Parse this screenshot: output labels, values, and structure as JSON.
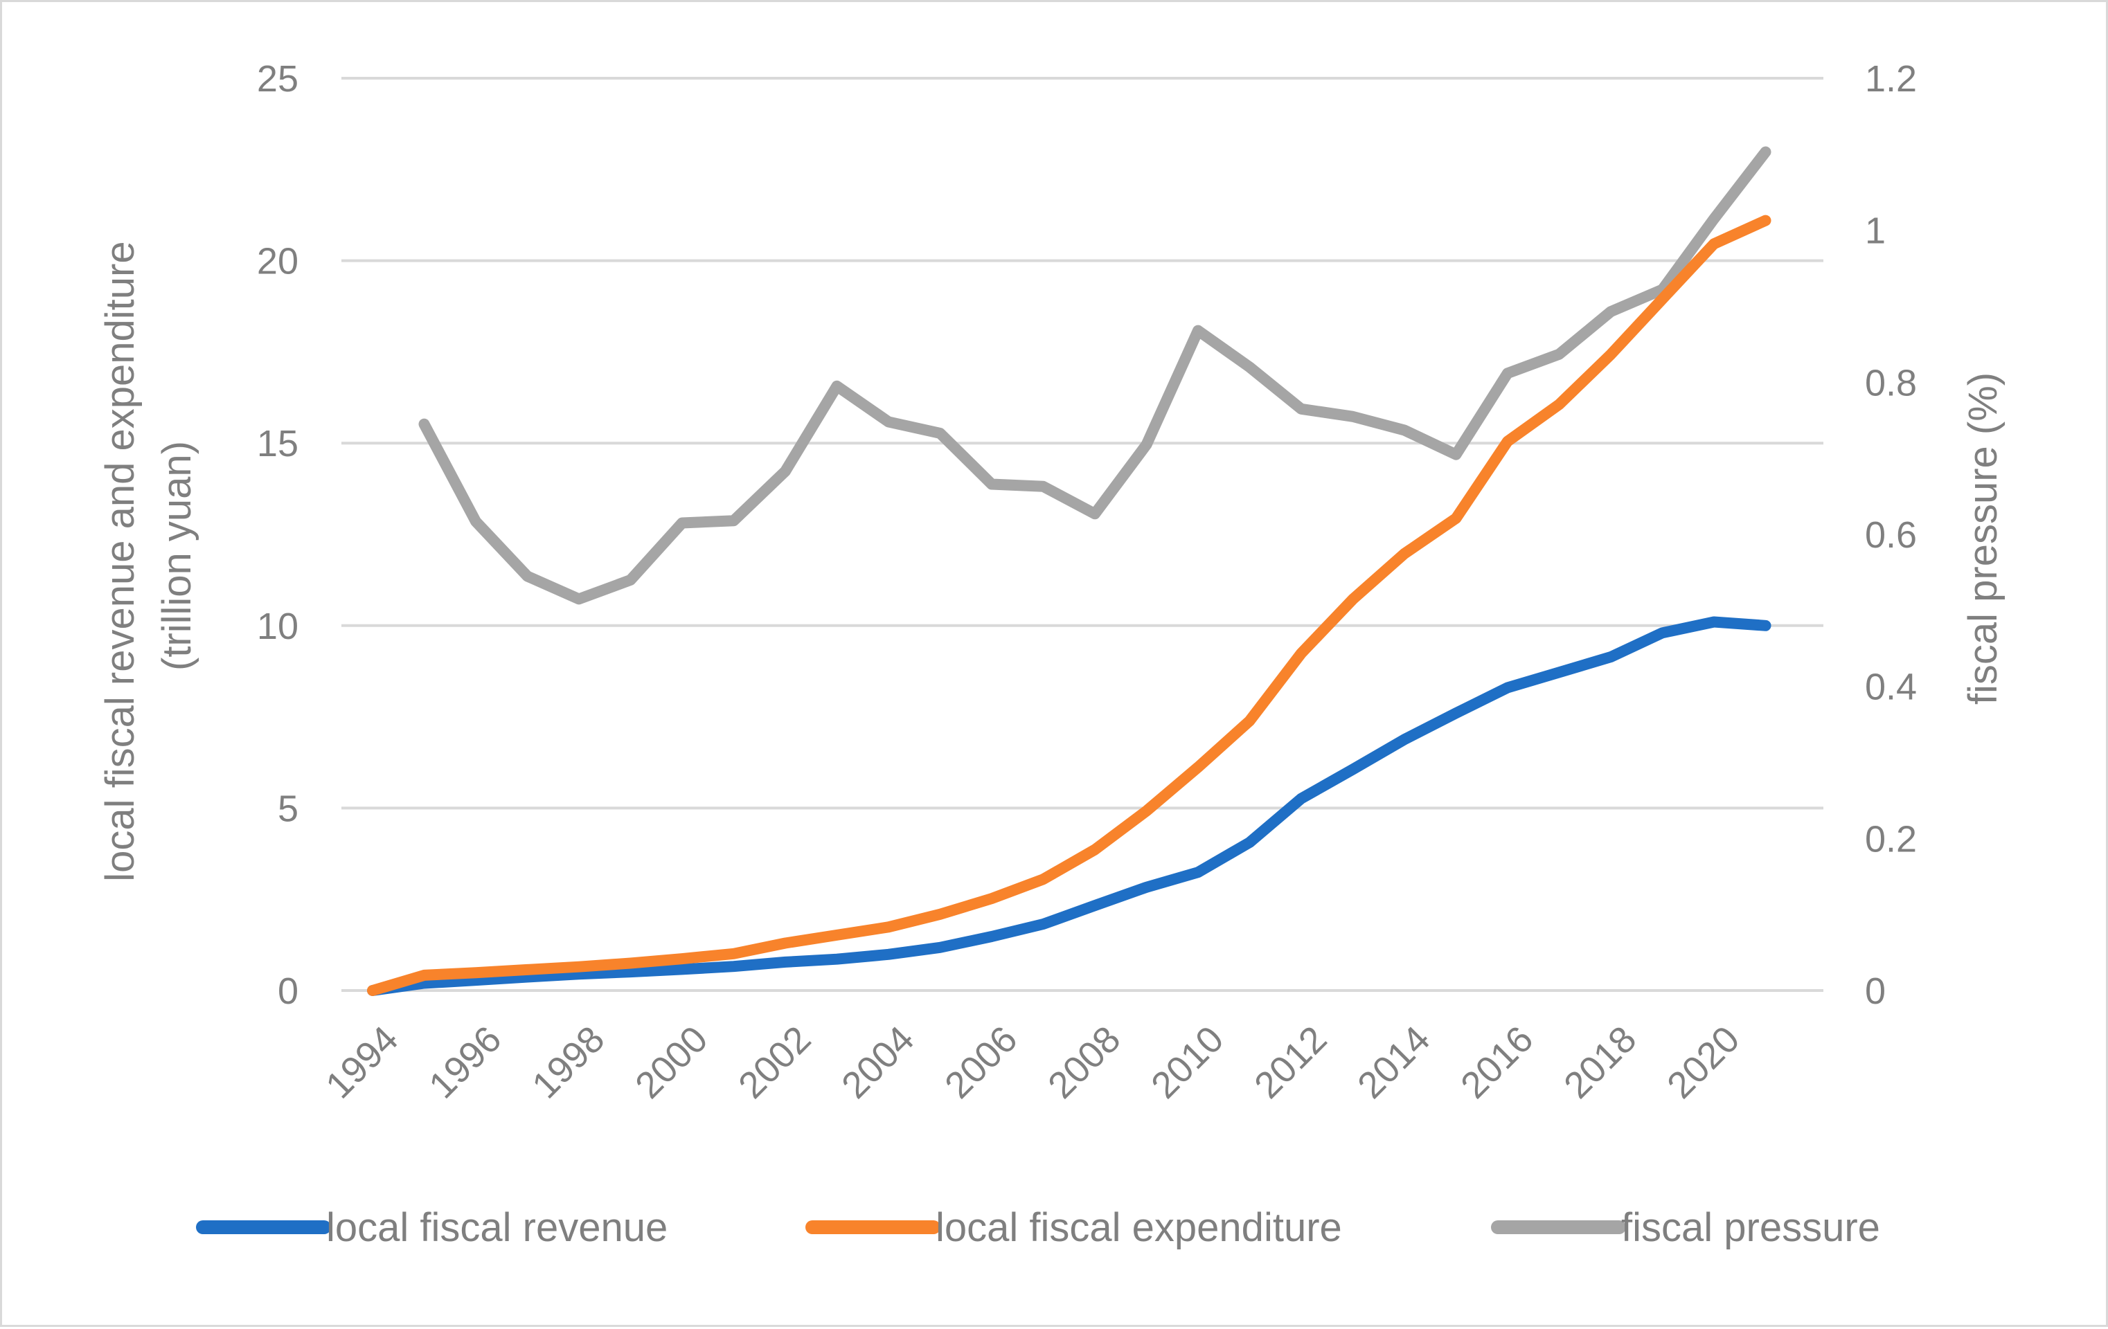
{
  "chart_data": {
    "type": "line",
    "title": "",
    "xlabel": "",
    "ylabel": "local fiscal revenue and expenditure (trillion yuan)",
    "ylabel_line1": "local fiscal revenue and expenditure",
    "ylabel_line2": "(trillion yuan)",
    "y2label": "fiscal pressure (%)",
    "ylim": [
      0,
      25
    ],
    "y2lim": [
      0,
      1.2
    ],
    "yticks": [
      "0",
      "5",
      "10",
      "15",
      "20",
      "25"
    ],
    "y2ticks": [
      "0",
      "0.2",
      "0.4",
      "0.6",
      "0.8",
      "1",
      "1.2"
    ],
    "xticks": [
      "1994",
      "1996",
      "1998",
      "2000",
      "2002",
      "2004",
      "2006",
      "2008",
      "2010",
      "2012",
      "2014",
      "2016",
      "2018",
      "2020"
    ],
    "x": [
      1994,
      1995,
      1996,
      1997,
      1998,
      1999,
      2000,
      2001,
      2002,
      2003,
      2004,
      2005,
      2006,
      2007,
      2008,
      2009,
      2010,
      2011,
      2012,
      2013,
      2014,
      2015,
      2016,
      2017,
      2018,
      2019,
      2020,
      2021
    ],
    "grid": true,
    "legend_position": "bottom",
    "series": [
      {
        "name": "local fiscal revenue",
        "axis": "left",
        "color": "#1f6fc5",
        "values": [
          0.0,
          0.2,
          0.28,
          0.37,
          0.45,
          0.51,
          0.58,
          0.66,
          0.78,
          0.86,
          0.99,
          1.18,
          1.48,
          1.82,
          2.33,
          2.83,
          3.24,
          4.06,
          5.26,
          6.06,
          6.88,
          7.6,
          8.3,
          8.72,
          9.14,
          9.8,
          10.1,
          10.0
        ]
      },
      {
        "name": "local fiscal expenditure",
        "axis": "left",
        "color": "#f8832b",
        "values": [
          0.0,
          0.42,
          0.49,
          0.57,
          0.65,
          0.75,
          0.87,
          1.01,
          1.3,
          1.52,
          1.74,
          2.09,
          2.52,
          3.05,
          3.86,
          4.92,
          6.12,
          7.39,
          9.24,
          10.72,
          11.97,
          12.94,
          15.05,
          16.06,
          17.43,
          18.95,
          20.46,
          21.1
        ]
      },
      {
        "name": "fiscal pressure",
        "axis": "right",
        "color": "#a5a5a5",
        "values": [
          null,
          0.745,
          0.617,
          0.545,
          0.515,
          0.54,
          0.615,
          0.618,
          0.683,
          0.795,
          0.748,
          0.733,
          0.666,
          0.663,
          0.627,
          0.718,
          0.868,
          0.82,
          0.765,
          0.755,
          0.737,
          0.705,
          0.812,
          0.837,
          0.893,
          0.922,
          1.015,
          1.103
        ]
      }
    ]
  }
}
